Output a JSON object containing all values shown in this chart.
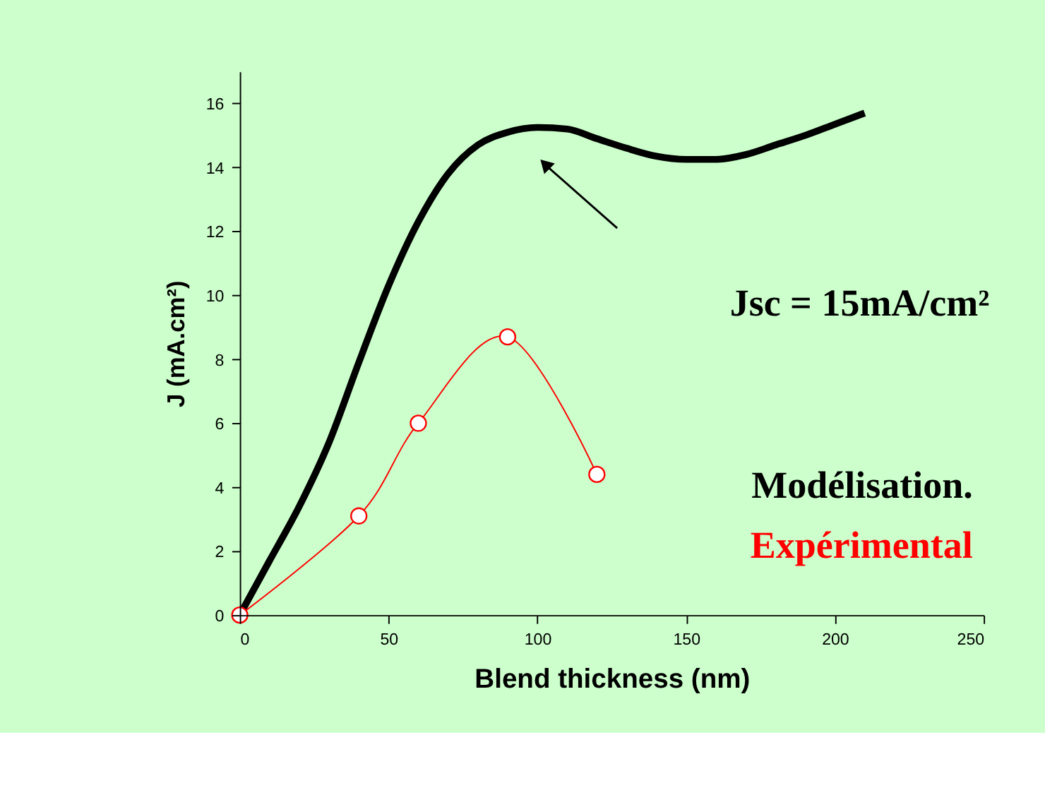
{
  "chart_data": {
    "type": "line",
    "xlabel": "Blend thickness (nm)",
    "ylabel": "J (mA.cm²)",
    "xlim": [
      0,
      250
    ],
    "xticks": [
      0,
      50,
      100,
      150,
      200,
      250
    ],
    "ylim": [
      0,
      17
    ],
    "yticks": [
      0,
      2,
      4,
      6,
      8,
      10,
      12,
      14,
      16
    ],
    "grid": false,
    "legend": "right",
    "line_style": "solid",
    "series": [
      {
        "name": "Modélisation.",
        "color": "#000000",
        "marker": "none",
        "x": [
          0,
          10,
          20,
          30,
          40,
          50,
          60,
          70,
          80,
          90,
          100,
          110,
          120,
          130,
          140,
          150,
          160,
          170,
          180,
          190,
          200,
          210
        ],
        "values": [
          0,
          1.7,
          3.4,
          5.4,
          7.9,
          10.3,
          12.3,
          13.8,
          14.7,
          15.1,
          15.25,
          15.2,
          14.9,
          14.6,
          14.35,
          14.25,
          14.25,
          14.4,
          14.7,
          15.0,
          15.35,
          15.7
        ]
      },
      {
        "name": "Expérimental",
        "color": "#ff0000",
        "marker": "circle",
        "x": [
          0,
          40,
          60,
          90,
          120
        ],
        "values": [
          0,
          3.1,
          6.0,
          8.7,
          4.4
        ]
      }
    ],
    "annotations": [
      "Jsc = 15mA/cm²"
    ]
  }
}
